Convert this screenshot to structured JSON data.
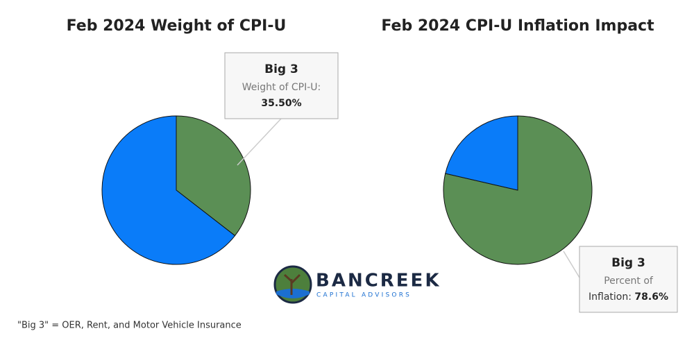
{
  "chart_data": [
    {
      "type": "pie",
      "title": "Feb 2024 Weight of CPI-U",
      "categories": [
        "Big 3",
        null
      ],
      "values": [
        35.5,
        64.5
      ],
      "value_labels": [
        "35.50%",
        null
      ],
      "colors": [
        "#5b8f55",
        "#0a7cf9"
      ],
      "callout_lines": [
        "Weight of CPI-U:"
      ]
    },
    {
      "type": "pie",
      "title": "Feb 2024 CPI-U Inflation Impact",
      "categories": [
        "Big 3",
        null
      ],
      "values": [
        78.6,
        21.4
      ],
      "value_labels": [
        "78.6%",
        null
      ],
      "colors": [
        "#5b8f55",
        "#0a7cf9"
      ],
      "callout_lines": [
        "Percent of",
        "Inflation:"
      ]
    }
  ],
  "logo": {
    "name": "BANCREEK",
    "tagline": "CAPITAL ADVISORS"
  },
  "footnote": "\"Big 3\" = OER, Rent, and Motor Vehicle Insurance"
}
